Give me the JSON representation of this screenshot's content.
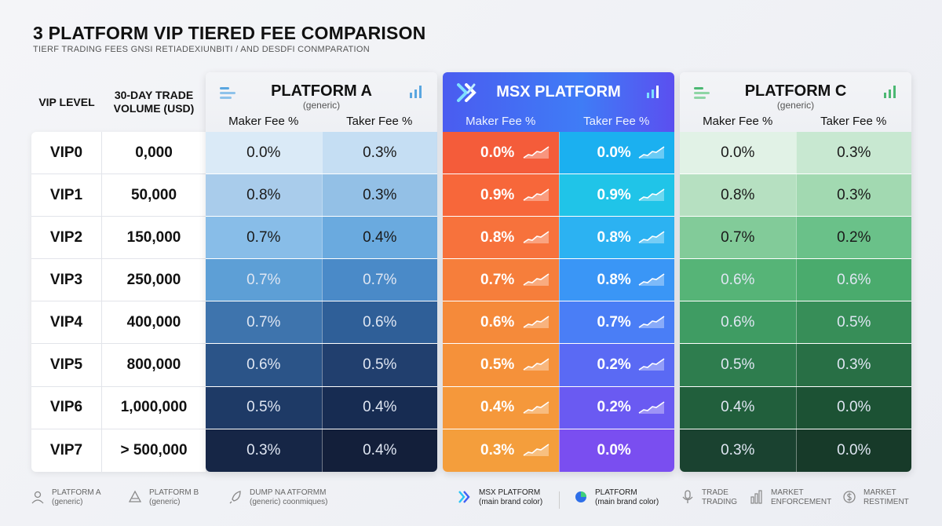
{
  "title": "3 PLATFORM VIP TIERED FEE COMPARISON",
  "subtitle": "TIERF TRADING FEES GNSI RETIADEXIUNBITI / AND DESDFI CONMPARATION",
  "left_headers": {
    "vip_level": "VIP LEVEL",
    "volume": "30-DAY TRADE VOLUME (USD)"
  },
  "chart_data": {
    "type": "table",
    "title": "3 PLATFORM VIP TIERED FEE COMPARISON",
    "rows": [
      {
        "vip": "VIP0",
        "volume": "0,000"
      },
      {
        "vip": "VIP1",
        "volume": "50,000"
      },
      {
        "vip": "VIP2",
        "volume": "150,000"
      },
      {
        "vip": "VIP3",
        "volume": "250,000"
      },
      {
        "vip": "VIP4",
        "volume": "400,000"
      },
      {
        "vip": "VIP5",
        "volume": "800,000"
      },
      {
        "vip": "VIP6",
        "volume": "1,000,000"
      },
      {
        "vip": "VIP7",
        "volume": "> 500,000"
      }
    ],
    "platforms": [
      {
        "key": "a",
        "name": "PLATFORM A",
        "generic": "(generic)",
        "maker_label": "Maker Fee %",
        "taker_label": "Taker Fee %",
        "maker": [
          "0.0%",
          "0.8%",
          "0.7%",
          "0.7%",
          "0.7%",
          "0.6%",
          "0.5%",
          "0.3%"
        ],
        "taker": [
          "0.3%",
          "0.3%",
          "0.4%",
          "0.7%",
          "0.6%",
          "0.5%",
          "0.4%",
          "0.4%"
        ]
      },
      {
        "key": "msx",
        "name": "MSX PLATFORM",
        "generic": "",
        "maker_label": "Maker Fee %",
        "taker_label": "Taker Fee %",
        "maker": [
          "0.0%",
          "0.9%",
          "0.8%",
          "0.7%",
          "0.6%",
          "0.5%",
          "0.4%",
          "0.3%"
        ],
        "taker": [
          "0.0%",
          "0.9%",
          "0.8%",
          "0.8%",
          "0.7%",
          "0.2%",
          "0.2%",
          "0.0%"
        ]
      },
      {
        "key": "c",
        "name": "PLATFORM C",
        "generic": "(generic)",
        "maker_label": "Maker Fee %",
        "taker_label": "Taker Fee %",
        "maker": [
          "0.0%",
          "0.8%",
          "0.7%",
          "0.6%",
          "0.6%",
          "0.5%",
          "0.4%",
          "0.3%"
        ],
        "taker": [
          "0.3%",
          "0.3%",
          "0.2%",
          "0.6%",
          "0.5%",
          "0.3%",
          "0.0%",
          "0.0%"
        ]
      }
    ]
  },
  "colors": {
    "a": [
      "#daeaf7",
      "#a9cceb",
      "#88bde8",
      "#5d9fd6",
      "#3e74ad",
      "#2b5488",
      "#1e3a66",
      "#162646"
    ],
    "a_taker": [
      "#c5def3",
      "#93c0e6",
      "#6aaadf",
      "#4a8ac8",
      "#2f5f98",
      "#213f6e",
      "#172c52",
      "#131f3a"
    ],
    "c": [
      "#e1f2e6",
      "#b6e0c1",
      "#82cb99",
      "#56b477",
      "#3f9c63",
      "#2e7d4e",
      "#215f3c",
      "#1a4230"
    ],
    "c_taker": [
      "#c8e8d1",
      "#a2d9b1",
      "#6ac189",
      "#4aab6d",
      "#378e58",
      "#286f45",
      "#1c5234",
      "#173a29"
    ],
    "msx_maker": [
      "#f45c3a",
      "#f7673a",
      "#f7723c",
      "#f67e3b",
      "#f58a3a",
      "#f5913a",
      "#f5983b",
      "#f49e3c"
    ],
    "msx_taker": [
      "#1bb0f0",
      "#20c4e8",
      "#2cb2f2",
      "#3a96f6",
      "#4a7ef6",
      "#5a6af4",
      "#6a5af2",
      "#7a4ef0"
    ],
    "msx_head": "#3f6ef5"
  },
  "legend": [
    {
      "icon": "user-icon",
      "line1": "PLATFORM A",
      "line2": "(generic)"
    },
    {
      "icon": "triangle-icon",
      "line1": "PLATFORM B",
      "line2": "(generic)"
    },
    {
      "icon": "rocket-icon",
      "line1": "DUMP NA ATFORMM",
      "line2": "(generic) coonmiques)"
    },
    {
      "icon": "msx-logo-icon",
      "line1": "MSX PLATFORM",
      "line2": "(main brand color)"
    },
    {
      "icon": "pie-icon",
      "line1": "PLATFORM",
      "line2": "(main brand color)"
    },
    {
      "icon": "microphone-icon",
      "line1": "TRADE",
      "line2": "TRADING"
    },
    {
      "icon": "bar-chart-icon",
      "line1": "MARKET",
      "line2": "ENFORCEMENT"
    },
    {
      "icon": "dollar-icon",
      "line1": "MARKET",
      "line2": "RESTIMENT"
    }
  ]
}
